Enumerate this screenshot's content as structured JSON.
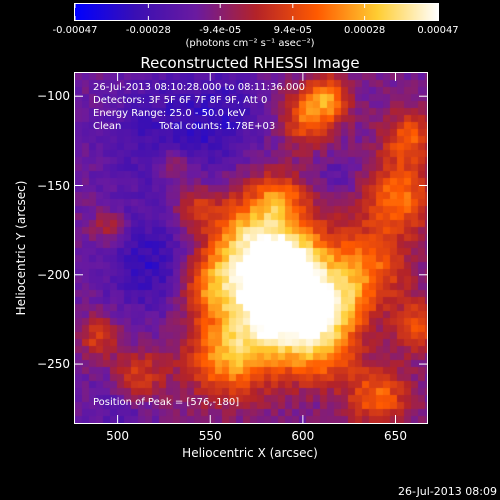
{
  "title": "Reconstructed RHESSI Image",
  "colorbar": {
    "ticks": [
      "-0.00047",
      "-0.00028",
      "-9.4e-05",
      "9.4e-05",
      "0.00028",
      "0.00047"
    ],
    "tick_values": [
      -0.00047,
      -0.00028,
      -9.4e-05,
      9.4e-05,
      0.00028,
      0.00047
    ],
    "range": [
      -0.00047,
      0.00047
    ],
    "units": "(photons cm⁻² s⁻¹ asec⁻²)",
    "colormap": [
      "#0000ff",
      "#3a0fb4",
      "#6a1aa0",
      "#b42328",
      "#ff5a00",
      "#ffcd32",
      "#ffffff"
    ]
  },
  "info": {
    "time_range": "26-Jul-2013 08:10:28.000 to 08:11:36.000",
    "detectors": "Detectors: 3F 5F 6F 7F 8F 9F, Att 0",
    "energy": "Energy Range: 25.0 - 50.0 keV",
    "method": "Clean",
    "counts": "Total counts: 1.78E+03"
  },
  "peak": "Position of Peak = [576,-180]",
  "x_axis": {
    "label": "Heliocentric X (arcsec)",
    "range": [
      477,
      667
    ],
    "ticks": [
      500,
      550,
      600,
      650
    ]
  },
  "y_axis": {
    "label": "Heliocentric Y (arcsec)",
    "range": [
      -283,
      -87
    ],
    "ticks": [
      -100,
      -150,
      -200,
      -250
    ]
  },
  "timestamp": "26-Jul-2013 08:09"
}
